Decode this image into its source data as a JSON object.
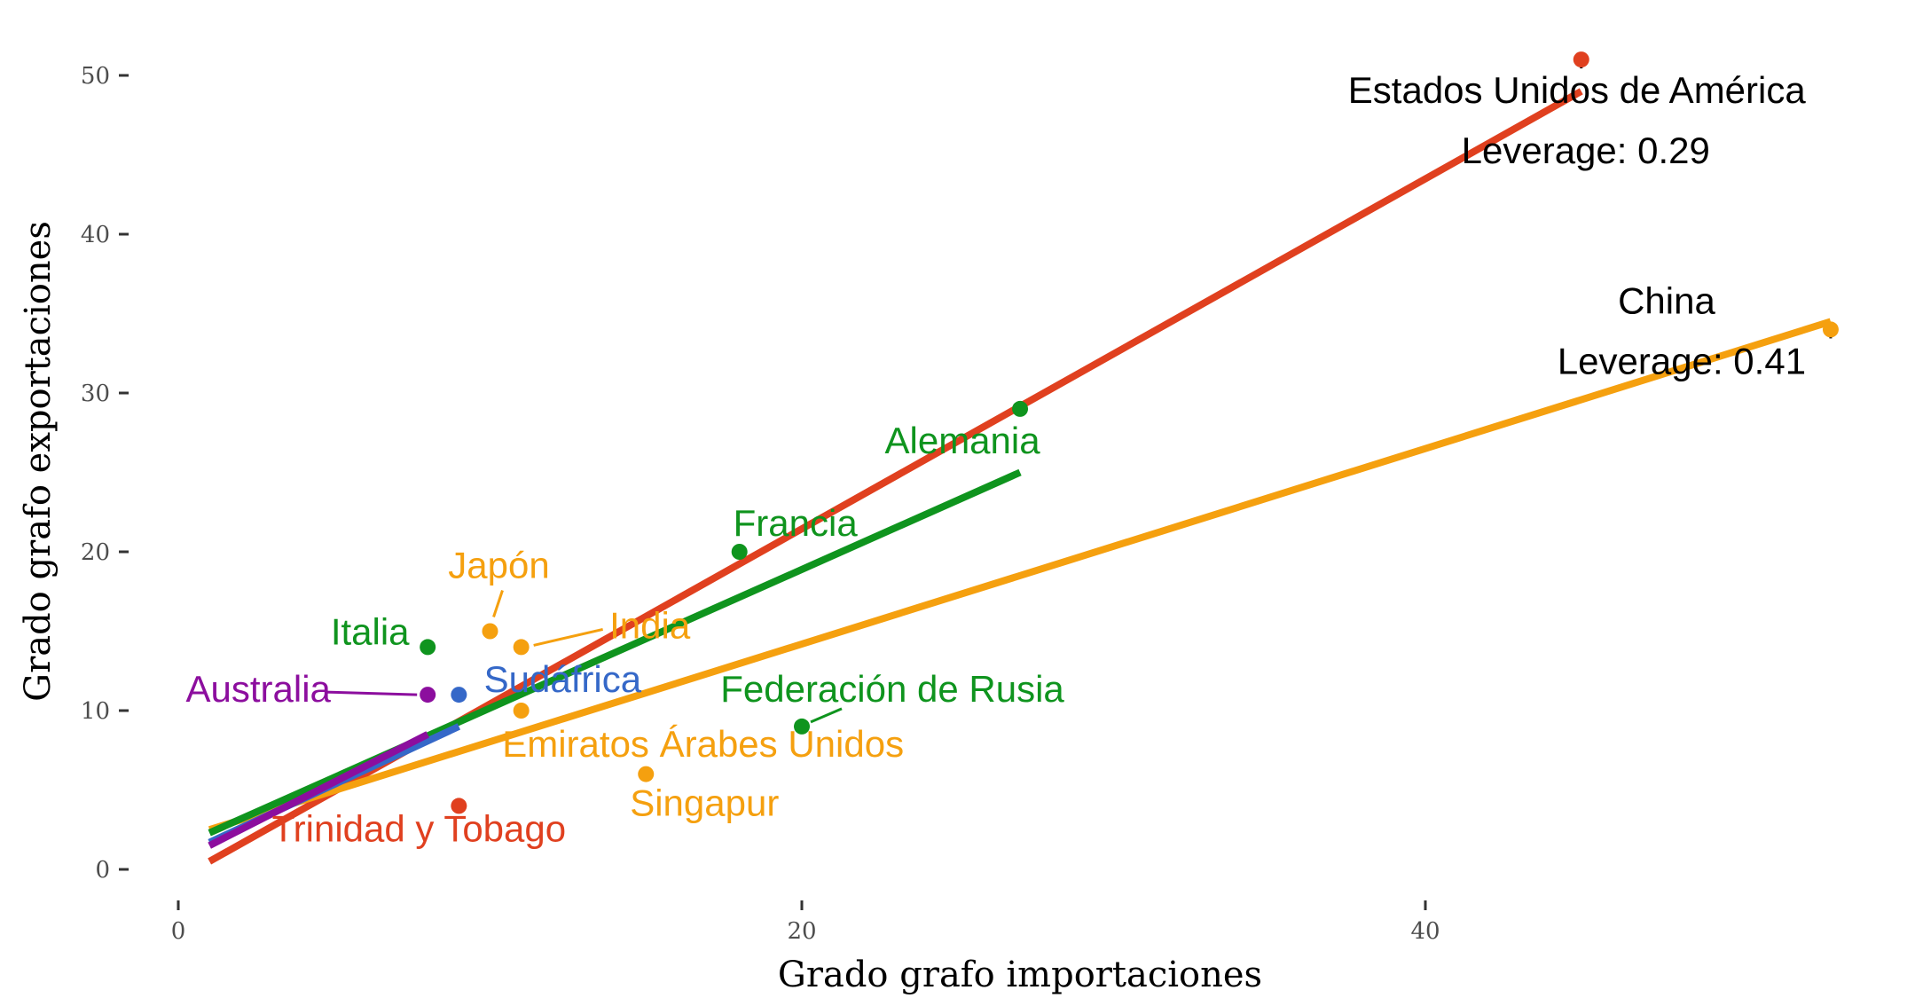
{
  "chart_data": {
    "type": "scatter",
    "title": "",
    "xlabel": "Grado grafo importaciones",
    "ylabel": "Grado grafo exportaciones",
    "xlim": [
      -2,
      55
    ],
    "ylim": [
      -2,
      53
    ],
    "x_ticks": [
      0,
      20,
      40
    ],
    "y_ticks": [
      0,
      10,
      20,
      30,
      40,
      50
    ],
    "grid": false,
    "colors": {
      "red": "#E0401F",
      "orange": "#F5A00F",
      "green": "#0F941E",
      "blue": "#3568C8",
      "purple": "#8C0E9E"
    },
    "points": [
      {
        "label": "Estados Unidos de América",
        "x": 45,
        "y": 51,
        "group": "red"
      },
      {
        "label": "Trinidad y Tobago",
        "x": 9,
        "y": 4,
        "group": "red"
      },
      {
        "label": "China",
        "x": 53,
        "y": 34,
        "group": "orange"
      },
      {
        "label": "Japón",
        "x": 10,
        "y": 15,
        "group": "orange"
      },
      {
        "label": "India",
        "x": 11,
        "y": 14,
        "group": "orange"
      },
      {
        "label": "Emiratos Árabes Unidos",
        "x": 11,
        "y": 10,
        "group": "orange"
      },
      {
        "label": "Singapur",
        "x": 15,
        "y": 6,
        "group": "orange"
      },
      {
        "label": "Alemania",
        "x": 27,
        "y": 29,
        "group": "green"
      },
      {
        "label": "Francia",
        "x": 18,
        "y": 20,
        "group": "green"
      },
      {
        "label": "Italia",
        "x": 8,
        "y": 14,
        "group": "green"
      },
      {
        "label": "Federación de Rusia",
        "x": 20,
        "y": 9,
        "group": "green"
      },
      {
        "label": "Sudáfrica",
        "x": 9,
        "y": 11,
        "group": "blue"
      },
      {
        "label": "Australia",
        "x": 8,
        "y": 11,
        "group": "purple"
      }
    ],
    "fit_lines": [
      {
        "group": "red",
        "x": [
          1,
          45
        ],
        "y": [
          0.5,
          49
        ]
      },
      {
        "group": "orange",
        "x": [
          1,
          53
        ],
        "y": [
          2.5,
          34.5
        ]
      },
      {
        "group": "green",
        "x": [
          1,
          27
        ],
        "y": [
          2.3,
          25
        ]
      },
      {
        "group": "blue",
        "x": [
          1,
          9
        ],
        "y": [
          1.7,
          9
        ]
      },
      {
        "group": "purple",
        "x": [
          1,
          8
        ],
        "y": [
          1.5,
          8.5
        ]
      }
    ],
    "annotations": [
      {
        "label": "Leverage: 0.29",
        "point": "Estados Unidos de América"
      },
      {
        "label": "Leverage: 0.41",
        "point": "China"
      }
    ]
  }
}
